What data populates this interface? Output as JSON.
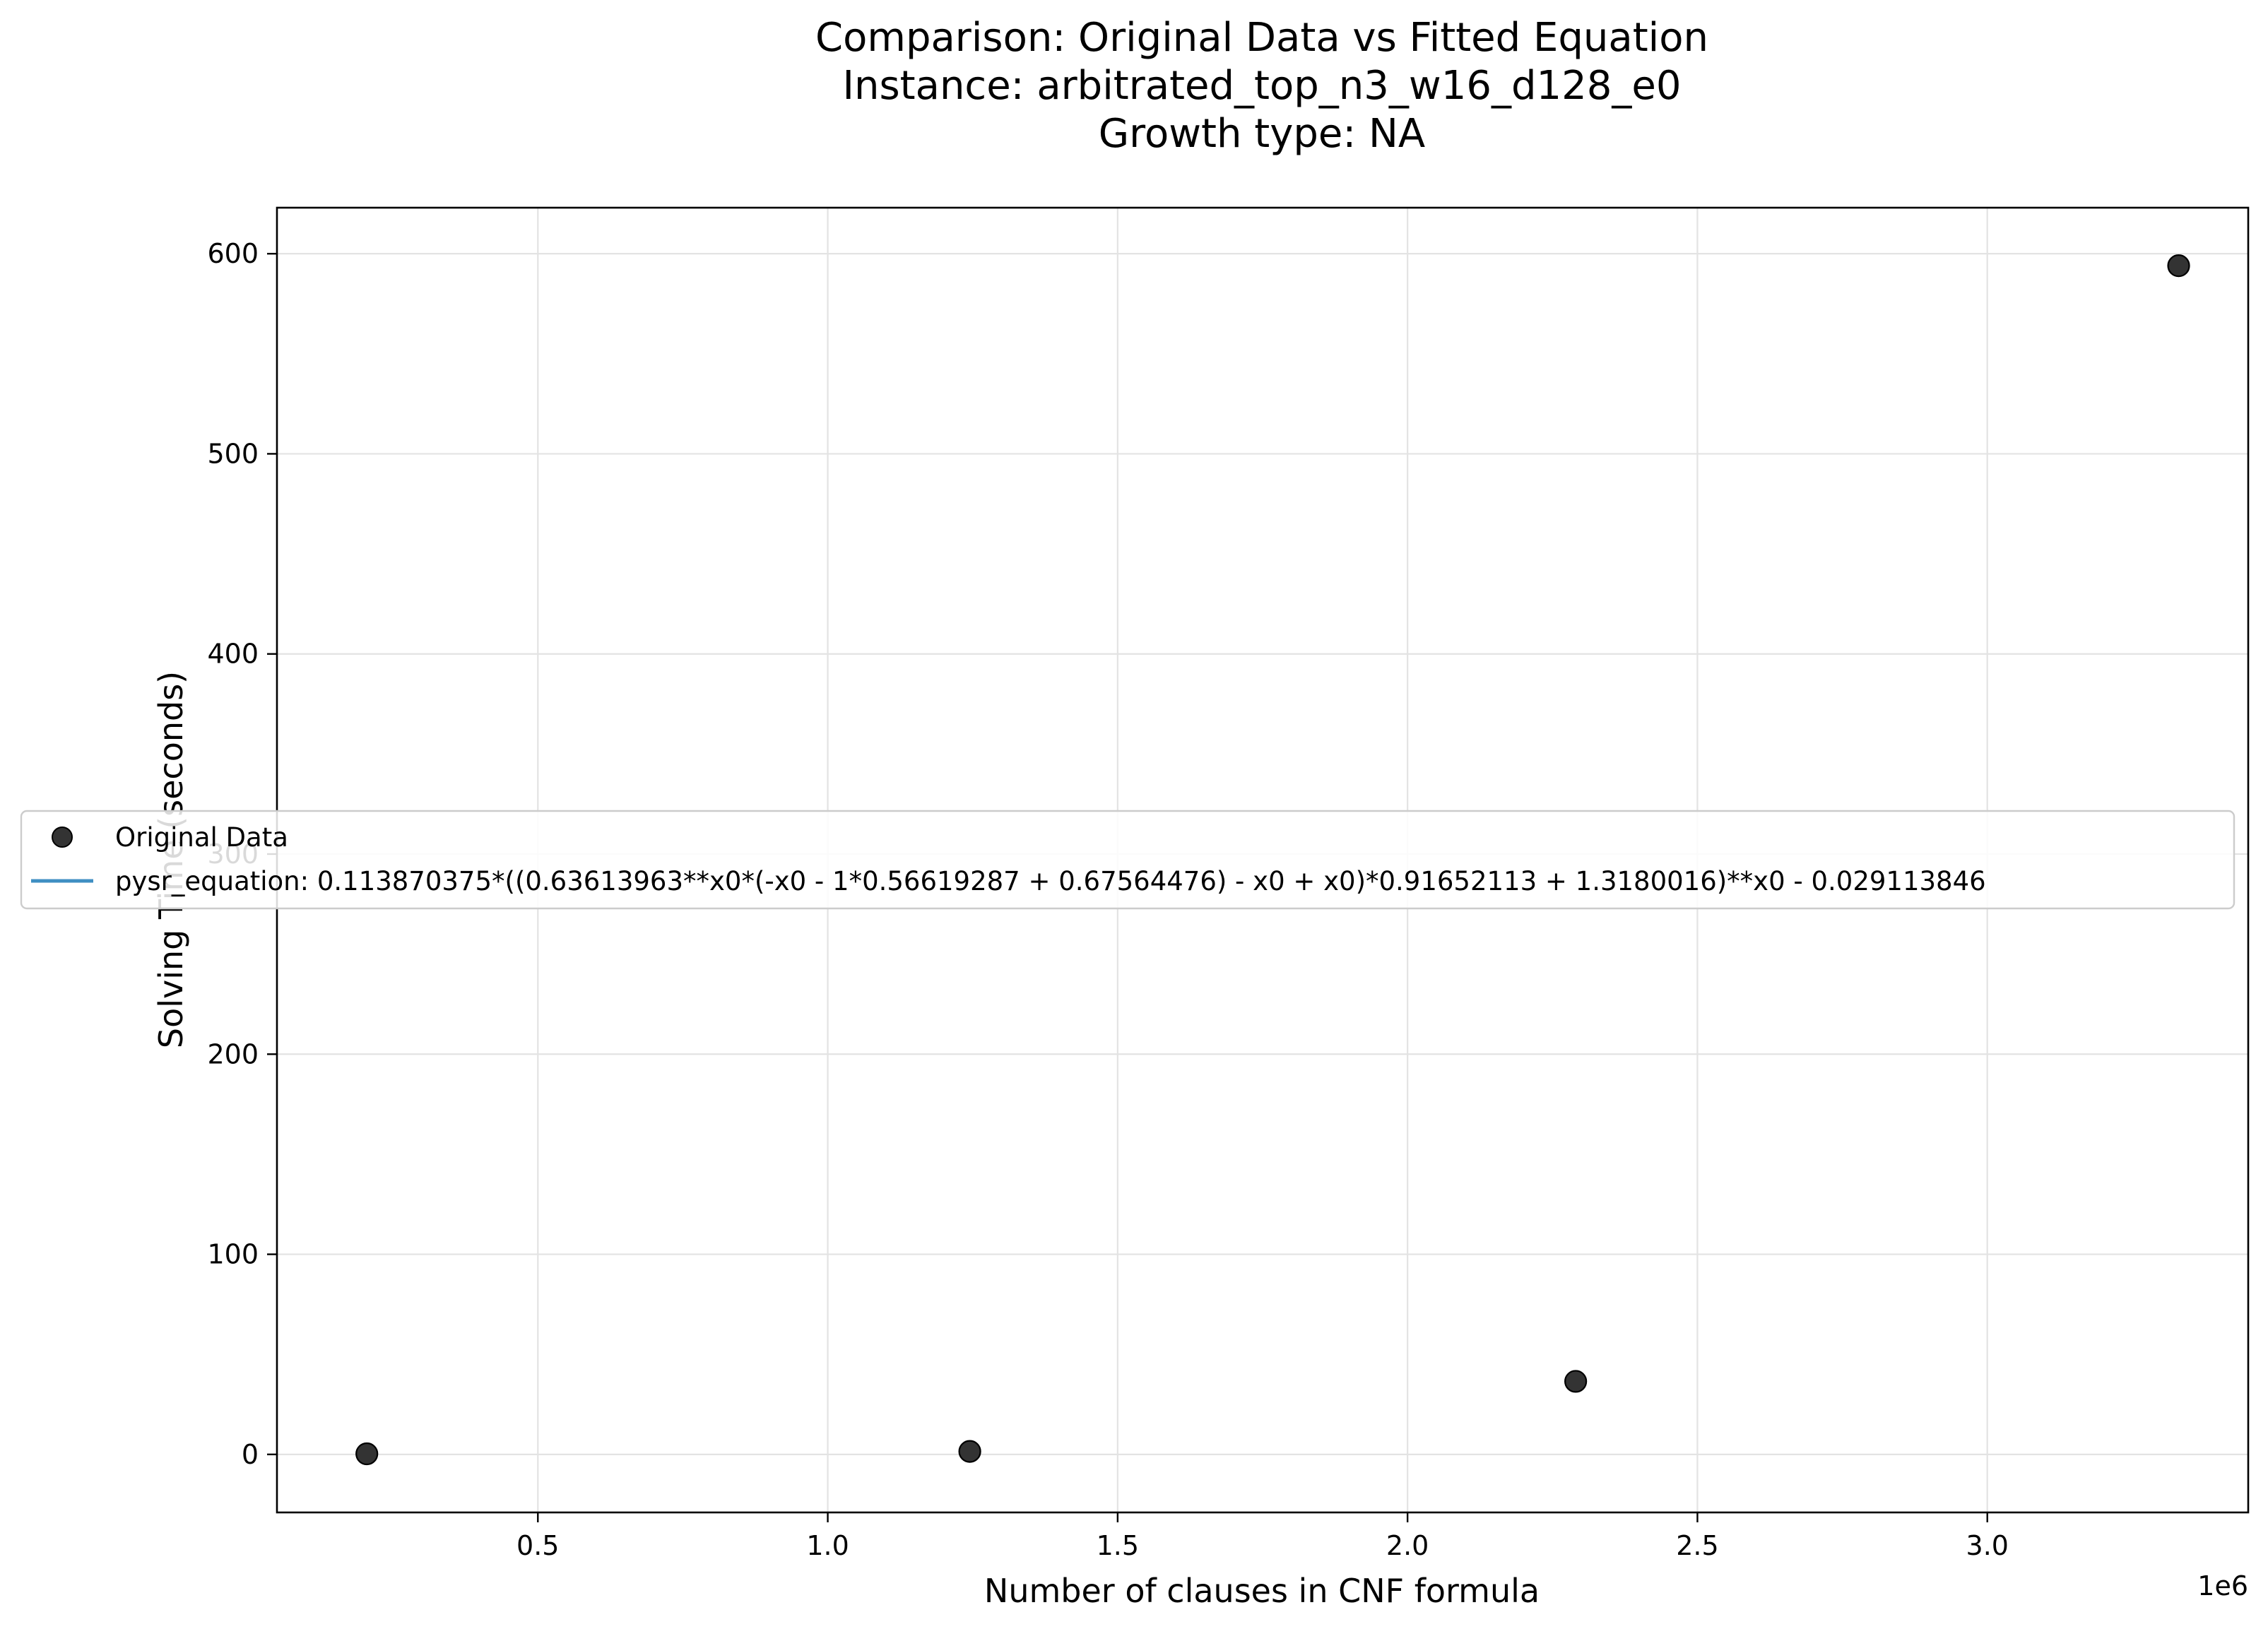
{
  "chart_data": {
    "type": "scatter",
    "title_lines": [
      "Comparison: Original Data vs Fitted Equation",
      "Instance: arbitrated_top_n3_w16_d128_e0",
      "Growth type: NA"
    ],
    "xlabel": "Number of clauses in CNF formula",
    "ylabel": "Solving Time (seconds)",
    "x_offset_text": "1e6",
    "x_scale": 1000000,
    "xlim": [
      0.05,
      3.45
    ],
    "ylim": [
      -29,
      623
    ],
    "xticks": [
      0.5,
      1.0,
      1.5,
      2.0,
      2.5,
      3.0
    ],
    "xtick_labels": [
      "0.5",
      "1.0",
      "1.5",
      "2.0",
      "2.5",
      "3.0"
    ],
    "yticks": [
      0,
      100,
      200,
      300,
      400,
      500,
      600
    ],
    "ytick_labels": [
      "0",
      "100",
      "200",
      "300",
      "400",
      "500",
      "600"
    ],
    "grid": true,
    "legend_position": "center-left",
    "series": [
      {
        "name": "Original Data",
        "kind": "scatter",
        "color": "#333333",
        "x": [
          0.205,
          1.245,
          2.29,
          3.33
        ],
        "y": [
          0.3,
          1.5,
          36.5,
          594
        ]
      },
      {
        "name": "pysr_equation: 0.113870375*((0.63613963**x0*(-x0 - 1*0.56619287 + 0.67564476) - x0 + x0)*0.91652113 + 1.3180016)**x0 - 0.029113846",
        "kind": "line",
        "color": "#3f8fc3",
        "x": [],
        "y": []
      }
    ]
  }
}
